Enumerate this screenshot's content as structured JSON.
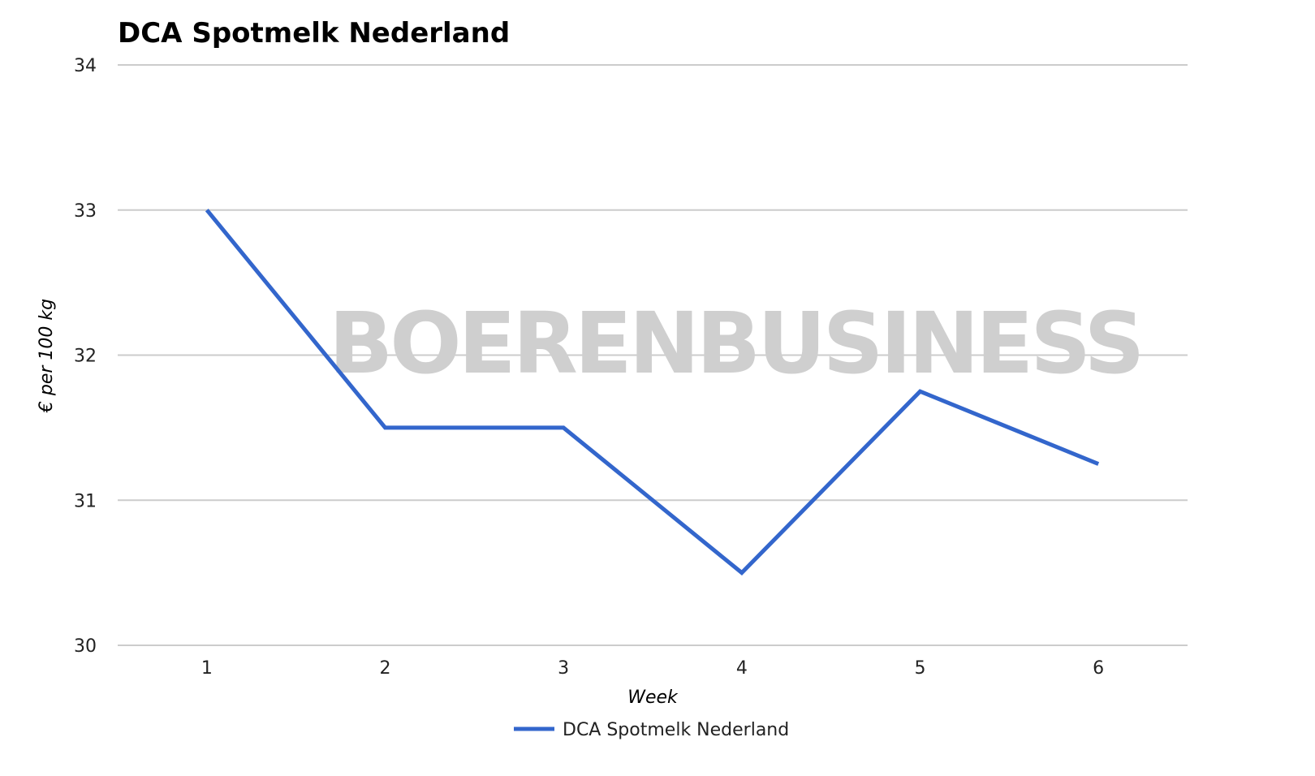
{
  "chart_data": {
    "type": "line",
    "title": "DCA Spotmelk Nederland",
    "xlabel": "Week",
    "ylabel": "€ per 100 kg",
    "categories": [
      "1",
      "2",
      "3",
      "4",
      "5",
      "6"
    ],
    "ylim": [
      30,
      34
    ],
    "yticks": [
      "30",
      "31",
      "32",
      "33",
      "34"
    ],
    "grid": true,
    "legend_position": "bottom",
    "series": [
      {
        "name": "DCA Spotmelk Nederland",
        "color": "#3366cc",
        "values": [
          33,
          31.5,
          31.5,
          30.5,
          31.75,
          31.25
        ]
      }
    ]
  },
  "watermark": "BOERENBUSINESS"
}
